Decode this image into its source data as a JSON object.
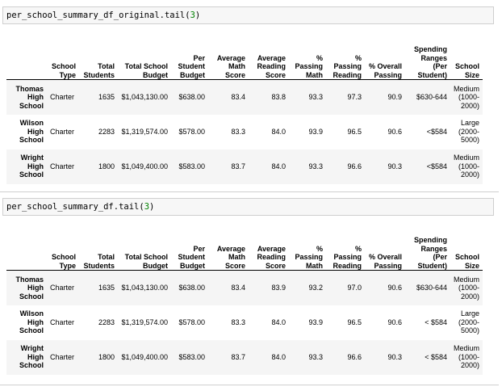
{
  "cells": [
    {
      "code": {
        "name": "per_school_summary_df_original.tail",
        "arg": "3"
      },
      "columns": [
        "School Type",
        "Total Students",
        "Total School Budget",
        "Per Student Budget",
        "Average Math Score",
        "Average Reading Score",
        "% Passing Math",
        "% Passing Reading",
        "% Overall Passing",
        "Spending Ranges (Per Student)",
        "School Size"
      ],
      "rows": [
        {
          "index": "Thomas High School",
          "values": [
            "Charter",
            "1635",
            "$1,043,130.00",
            "$638.00",
            "83.4",
            "83.8",
            "93.3",
            "97.3",
            "90.9",
            "$630-644",
            "Medium (1000-2000)"
          ]
        },
        {
          "index": "Wilson High School",
          "values": [
            "Charter",
            "2283",
            "$1,319,574.00",
            "$578.00",
            "83.3",
            "84.0",
            "93.9",
            "96.5",
            "90.6",
            "<$584",
            "Large (2000-5000)"
          ]
        },
        {
          "index": "Wright High School",
          "values": [
            "Charter",
            "1800",
            "$1,049,400.00",
            "$583.00",
            "83.7",
            "84.0",
            "93.3",
            "96.6",
            "90.3",
            "<$584",
            "Medium (1000-2000)"
          ]
        }
      ]
    },
    {
      "code": {
        "name": "per_school_summary_df.tail",
        "arg": "3"
      },
      "columns": [
        "School Type",
        "Total Students",
        "Total School Budget",
        "Per Student Budget",
        "Average Math Score",
        "Average Reading Score",
        "% Passing Math",
        "% Passing Reading",
        "% Overall Passing",
        "Spending Ranges (Per Student)",
        "School Size"
      ],
      "rows": [
        {
          "index": "Thomas High School",
          "values": [
            "Charter",
            "1635",
            "$1,043,130.00",
            "$638.00",
            "83.4",
            "83.9",
            "93.2",
            "97.0",
            "90.6",
            "$630-644",
            "Medium (1000-2000)"
          ]
        },
        {
          "index": "Wilson High School",
          "values": [
            "Charter",
            "2283",
            "$1,319,574.00",
            "$578.00",
            "83.3",
            "84.0",
            "93.9",
            "96.5",
            "90.6",
            "< $584",
            "Large (2000-5000)"
          ]
        },
        {
          "index": "Wright High School",
          "values": [
            "Charter",
            "1800",
            "$1,049,400.00",
            "$583.00",
            "83.7",
            "84.0",
            "93.3",
            "96.6",
            "90.3",
            "< $584",
            "Medium (1000-2000)"
          ]
        }
      ]
    }
  ]
}
